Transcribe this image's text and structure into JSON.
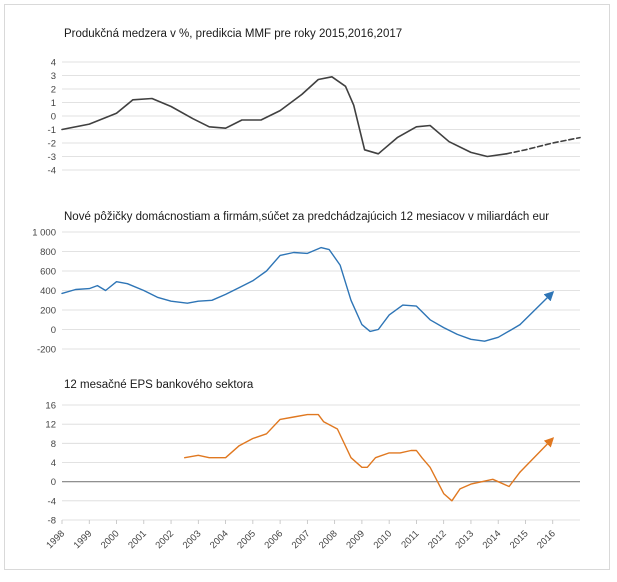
{
  "chart_data": [
    {
      "type": "line",
      "title": "Produkčná medzera v %, predikcia MMF pre roky 2015,2016,2017",
      "ylim": [
        -4,
        4
      ],
      "ytick_labels": [
        "4",
        "3",
        "2",
        "1",
        "0",
        "-1",
        "-2",
        "-3",
        "-4"
      ],
      "grid": true,
      "series": [
        {
          "style": "solid",
          "color": "#404040",
          "x": [
            1998.0,
            1999.0,
            2000.0,
            2000.6,
            2001.3,
            2002.0,
            2002.8,
            2003.4,
            2004.0,
            2004.6,
            2005.3,
            2006.0,
            2006.8,
            2007.4,
            2007.9,
            2008.4,
            2008.7,
            2009.1,
            2009.6,
            2010.3,
            2011.0,
            2011.5,
            2012.2,
            2013.0,
            2013.6,
            2014.3
          ],
          "y": [
            -1.0,
            -0.6,
            0.2,
            1.2,
            1.3,
            0.7,
            -0.2,
            -0.8,
            -0.9,
            -0.3,
            -0.3,
            0.4,
            1.6,
            2.7,
            2.9,
            2.2,
            0.8,
            -2.5,
            -2.8,
            -1.6,
            -0.8,
            -0.7,
            -1.9,
            -2.7,
            -3.0,
            -2.8
          ]
        },
        {
          "style": "dashed",
          "color": "#404040",
          "x": [
            2014.3,
            2015.0,
            2016.0,
            2017.0
          ],
          "y": [
            -2.8,
            -2.5,
            -2.0,
            -1.6
          ]
        }
      ]
    },
    {
      "type": "line",
      "title": "Nové pôžičky domácnostiam a firmám,súčet za predchádzajúcich 12 mesiacov v miliardách eur",
      "ylim": [
        -200,
        1000
      ],
      "ytick_labels": [
        "1 000",
        "800",
        "600",
        "400",
        "200",
        "0",
        "-200"
      ],
      "grid": true,
      "series": [
        {
          "style": "solid",
          "color": "#2e75b6",
          "x": [
            1998.0,
            1998.5,
            1999.0,
            1999.3,
            1999.6,
            2000.0,
            2000.4,
            2001.0,
            2001.5,
            2002.0,
            2002.6,
            2003.0,
            2003.5,
            2004.0,
            2004.5,
            2005.0,
            2005.5,
            2006.0,
            2006.5,
            2007.0,
            2007.5,
            2007.8,
            2008.2,
            2008.6,
            2009.0,
            2009.3,
            2009.6,
            2010.0,
            2010.5,
            2011.0,
            2011.5,
            2012.0,
            2012.5,
            2013.0,
            2013.5,
            2014.0,
            2014.5,
            2014.8
          ],
          "y": [
            370,
            410,
            420,
            450,
            400,
            490,
            470,
            400,
            330,
            290,
            270,
            290,
            300,
            360,
            430,
            500,
            600,
            760,
            790,
            780,
            840,
            820,
            660,
            300,
            50,
            -20,
            0,
            150,
            250,
            240,
            100,
            20,
            -50,
            -100,
            -120,
            -80,
            0,
            50
          ]
        },
        {
          "style": "arrow",
          "color": "#2e75b6",
          "x": [
            2014.8,
            2016.0
          ],
          "y": [
            50,
            380
          ]
        }
      ]
    },
    {
      "type": "line",
      "title": "12 mesačné EPS bankového sektora",
      "ylim": [
        -8,
        16
      ],
      "ytick_labels": [
        "16",
        "12",
        "8",
        "4",
        "0",
        "-4",
        "-8"
      ],
      "grid": true,
      "xtick_labels": [
        "1998",
        "1999",
        "2000",
        "2001",
        "2002",
        "2003",
        "2004",
        "2005",
        "2006",
        "2007",
        "2008",
        "2009",
        "2010",
        "2011",
        "2012",
        "2013",
        "2014",
        "2015",
        "2016"
      ],
      "series": [
        {
          "style": "solid",
          "color": "#e07820",
          "x": [
            2002.5,
            2003.0,
            2003.4,
            2004.0,
            2004.5,
            2005.0,
            2005.5,
            2006.0,
            2006.5,
            2007.0,
            2007.4,
            2007.6,
            2008.1,
            2008.6,
            2009.0,
            2009.2,
            2009.5,
            2010.0,
            2010.4,
            2010.8,
            2011.0,
            2011.2,
            2011.5,
            2012.0,
            2012.3,
            2012.6,
            2013.0,
            2013.4,
            2013.8,
            2014.0,
            2014.4,
            2014.8
          ],
          "y": [
            5,
            5.5,
            5,
            5,
            7.5,
            9,
            10,
            13,
            13.5,
            14,
            14,
            12.5,
            11,
            5,
            3,
            3,
            5,
            6,
            6,
            6.5,
            6.5,
            5,
            3,
            -2.5,
            -4,
            -1.5,
            -0.5,
            0,
            0.5,
            0,
            -1,
            2
          ]
        },
        {
          "style": "arrow",
          "color": "#e07820",
          "x": [
            2014.8,
            2016.0
          ],
          "y": [
            2,
            9
          ]
        }
      ]
    }
  ]
}
